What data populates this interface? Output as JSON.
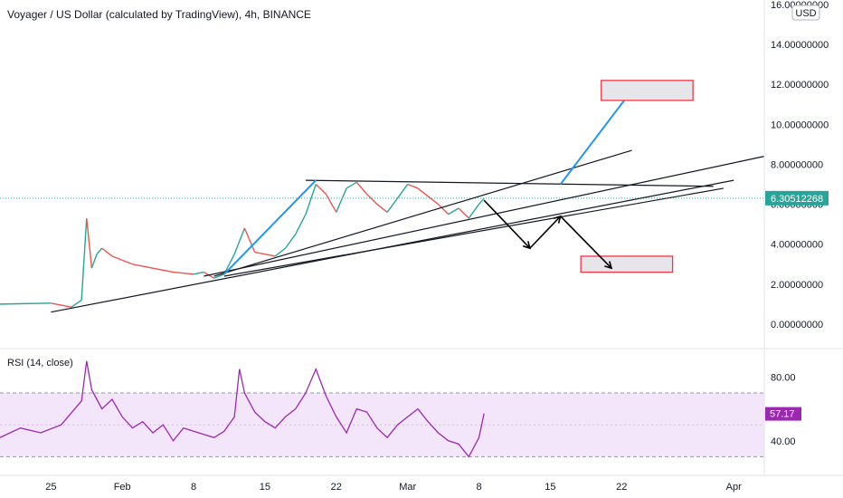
{
  "chart_data": [
    {
      "type": "candlestick",
      "title": "Voyager / US Dollar (calculated by TradingView), 4h, BINANCE",
      "currency_badge": "USD",
      "y_axis": {
        "range": [
          -1.0,
          16.0
        ],
        "ticks": [
          "16.00000000",
          "14.00000000",
          "12.00000000",
          "10.00000000",
          "8.00000000",
          "6.00000000",
          "4.00000000",
          "2.00000000",
          "0.00000000"
        ],
        "tick_values": [
          16,
          14,
          12,
          10,
          8,
          6,
          4,
          2,
          0
        ]
      },
      "last_price": {
        "value": 6.30512268,
        "label": "6.30512268",
        "color": "#26a69a"
      },
      "price_path": [
        [
          0,
          1.1
        ],
        [
          20,
          1.0
        ],
        [
          25,
          1.05
        ],
        [
          27,
          0.85
        ],
        [
          28,
          1.2
        ],
        [
          28.5,
          5.3
        ],
        [
          29,
          2.8
        ],
        [
          29.5,
          3.5
        ],
        [
          30,
          3.8
        ],
        [
          31,
          3.4
        ],
        [
          32,
          3.2
        ],
        [
          33,
          3.0
        ],
        [
          35,
          2.8
        ],
        [
          37,
          2.6
        ],
        [
          39,
          2.5
        ],
        [
          40,
          2.6
        ],
        [
          41,
          2.3
        ],
        [
          42,
          2.5
        ],
        [
          43,
          3.5
        ],
        [
          44,
          4.8
        ],
        [
          45,
          3.6
        ],
        [
          46,
          3.5
        ],
        [
          47,
          3.4
        ],
        [
          48,
          3.8
        ],
        [
          49,
          4.5
        ],
        [
          50,
          5.5
        ],
        [
          51,
          7.0
        ],
        [
          52,
          6.5
        ],
        [
          53,
          5.6
        ],
        [
          54,
          6.8
        ],
        [
          55,
          7.1
        ],
        [
          56,
          6.5
        ],
        [
          57,
          6.0
        ],
        [
          58,
          5.6
        ],
        [
          59,
          6.3
        ],
        [
          60,
          7.0
        ],
        [
          61,
          6.8
        ],
        [
          62,
          6.4
        ],
        [
          63,
          6.0
        ],
        [
          64,
          5.5
        ],
        [
          65,
          5.8
        ],
        [
          66,
          5.3
        ],
        [
          67,
          6.0
        ],
        [
          67.5,
          6.3
        ]
      ],
      "x_axis": {
        "range": [
          20,
          95
        ],
        "ticks": [
          {
            "label": "25",
            "x": 25
          },
          {
            "label": "Feb",
            "x": 32
          },
          {
            "label": "8",
            "x": 39
          },
          {
            "label": "15",
            "x": 46
          },
          {
            "label": "22",
            "x": 53
          },
          {
            "label": "Mar",
            "x": 60
          },
          {
            "label": "8",
            "x": 67
          },
          {
            "label": "15",
            "x": 74
          },
          {
            "label": "22",
            "x": 81
          },
          {
            "label": "Apr",
            "x": 92
          }
        ]
      },
      "annotations": {
        "trendlines": [
          {
            "from": [
              25,
              0.6
            ],
            "to": [
              92,
              7.2
            ],
            "color": "#131722"
          },
          {
            "from": [
              40,
              2.4
            ],
            "to": [
              95,
              8.4
            ],
            "color": "#131722"
          },
          {
            "from": [
              41,
              2.4
            ],
            "to": [
              82,
              8.7
            ],
            "color": "#131722"
          },
          {
            "from": [
              50,
              7.2
            ],
            "to": [
              90,
              6.9
            ],
            "color": "#131722"
          },
          {
            "from": [
              42,
              2.4
            ],
            "to": [
              91,
              6.8
            ],
            "color": "#131722"
          }
        ],
        "projections": [
          {
            "from": [
              42,
              2.5
            ],
            "to": [
              51,
              7.2
            ],
            "color": "#2196f3"
          },
          {
            "from": [
              75,
              7.0
            ],
            "to": [
              82,
              11.7
            ],
            "color": "#2196f3"
          }
        ],
        "arrows": [
          {
            "points": [
              [
                67.5,
                6.2
              ],
              [
                72,
                3.8
              ],
              [
                75,
                5.4
              ],
              [
                80,
                2.8
              ]
            ],
            "color": "#000000"
          }
        ],
        "target_boxes": [
          {
            "from": [
              79,
              11.2
            ],
            "to": [
              88,
              12.2
            ],
            "stroke": "#f23645",
            "fill": "#e6e6ea"
          },
          {
            "from": [
              77,
              2.6
            ],
            "to": [
              86,
              3.4
            ],
            "stroke": "#f23645",
            "fill": "#e6e6ea"
          }
        ]
      }
    },
    {
      "type": "line",
      "title": "RSI (14, close)",
      "y_axis": {
        "range": [
          20,
          95
        ],
        "ticks": [
          "80.00",
          "40.00"
        ],
        "tick_values": [
          80,
          40
        ]
      },
      "band": {
        "upper": 70,
        "lower": 30,
        "fill": "#f3e6fb",
        "stroke": "#7e57c2"
      },
      "midline": {
        "value": 50
      },
      "last_value": {
        "value": 57.17,
        "label": "57.17",
        "color": "#9c27b0"
      },
      "series": [
        {
          "color": "#9c27b0",
          "x": [
            20,
            22,
            24,
            26,
            28,
            28.5,
            29,
            30,
            31,
            32,
            33,
            34,
            35,
            36,
            37,
            38,
            39,
            40,
            41,
            42,
            43,
            43.5,
            44,
            45,
            46,
            47,
            48,
            49,
            50,
            51,
            52,
            53,
            54,
            55,
            56,
            57,
            58,
            59,
            60,
            61,
            62,
            63,
            64,
            65,
            66,
            67,
            67.5
          ],
          "values": [
            42,
            48,
            45,
            50,
            65,
            90,
            72,
            60,
            66,
            55,
            48,
            52,
            45,
            50,
            40,
            48,
            46,
            44,
            42,
            46,
            55,
            85,
            70,
            58,
            52,
            48,
            55,
            60,
            70,
            85,
            68,
            55,
            45,
            60,
            58,
            48,
            42,
            50,
            55,
            60,
            52,
            45,
            40,
            38,
            30,
            42,
            57.17
          ]
        }
      ]
    }
  ]
}
